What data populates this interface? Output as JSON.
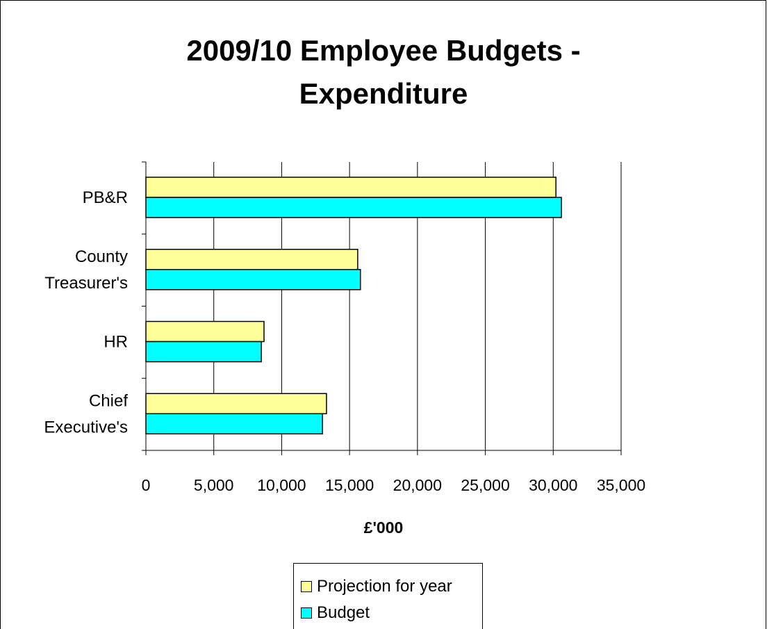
{
  "chart_data": {
    "type": "bar",
    "orientation": "horizontal",
    "title_lines": [
      "2009/10 Employee Budgets -",
      "Expenditure"
    ],
    "xlabel": "£'000",
    "ylabel": "",
    "categories": [
      [
        "Chief",
        "Executive's"
      ],
      [
        "HR"
      ],
      [
        "County",
        "Treasurer's"
      ],
      [
        "PB&R"
      ]
    ],
    "series": [
      {
        "name": "Projection for year",
        "color": "#ffff99",
        "values": [
          13300,
          8700,
          15600,
          30200
        ]
      },
      {
        "name": "Budget",
        "color": "#00ffff",
        "values": [
          13000,
          8500,
          15800,
          30600
        ]
      }
    ],
    "xlim": [
      0,
      35000
    ],
    "xticks": [
      0,
      5000,
      10000,
      15000,
      20000,
      25000,
      30000,
      35000
    ],
    "xtick_labels": [
      "0",
      "5,000",
      "10,000",
      "15,000",
      "20,000",
      "25,000",
      "30,000",
      "35,000"
    ],
    "grid": "vertical",
    "legend_position": "bottom"
  }
}
